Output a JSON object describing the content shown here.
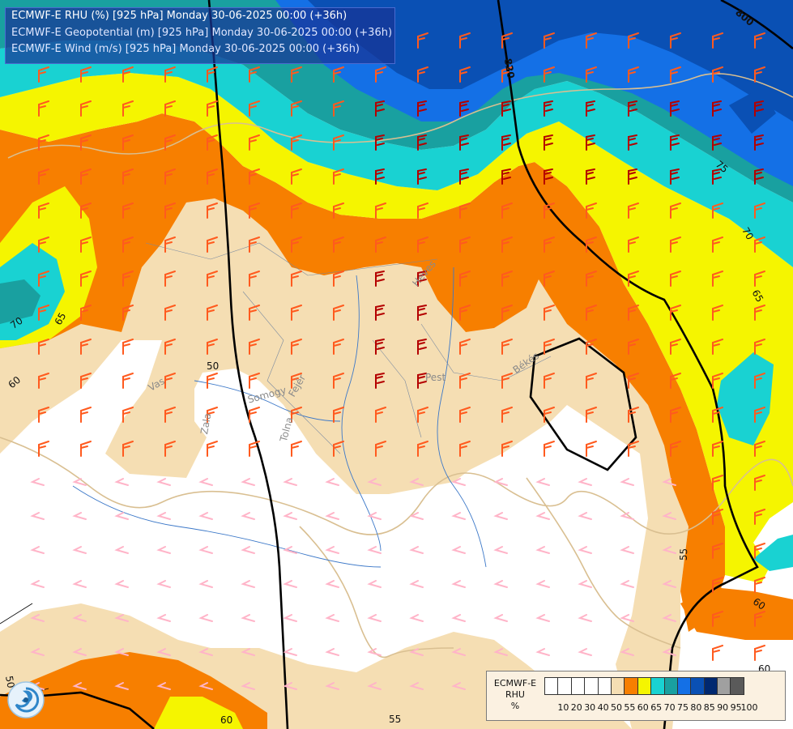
{
  "titles": {
    "rhu": "ECMWF-E RHU (%) [925 hPa] Monday 30-06-2025 00:00 (+36h)",
    "geopotential": "ECMWF-E Geopotential (m) [925 hPa] Monday 30-06-2025 00:00 (+36h)",
    "wind": "ECMWF-E Wind (m/s) [925 hPa] Monday 30-06-2025 00:00 (+36h)"
  },
  "legend": {
    "line1": "ECMWF-E",
    "line2": "RHU",
    "line3": "%",
    "ticks": [
      "10",
      "20",
      "30",
      "40",
      "50",
      "55",
      "60",
      "65",
      "70",
      "75",
      "80",
      "85",
      "90",
      "95",
      "100"
    ],
    "colors": [
      "#ffffff",
      "#ffffff",
      "#ffffff",
      "#ffffff",
      "#ffffff",
      "#f5deb3",
      "#f77f00",
      "#f5f500",
      "#19d2d2",
      "#19a0a0",
      "#1470e6",
      "#0a50b4",
      "#002870",
      "#a0a0a0",
      "#5a5a5a"
    ]
  },
  "rhu_colors": {
    "lt50": "#ffffff",
    "r50_55": "#f5deb3",
    "r55_60": "#f77f00",
    "r60_65": "#f5f500",
    "r65_70": "#19d2d2",
    "r70_75": "#19a0a0",
    "r75_80": "#1470e6",
    "r80_85": "#0a50b4"
  },
  "contour_labels": {
    "rhu": [
      "50",
      "55",
      "55",
      "60",
      "60",
      "60",
      "60",
      "65",
      "65",
      "70",
      "70",
      "75",
      "50"
    ],
    "geopotential": [
      "820",
      "800"
    ]
  },
  "place_labels": [
    "Pest",
    "Békés",
    "Heves",
    "Somogy",
    "Tolna",
    "Fejér",
    "Zala",
    "Vas"
  ],
  "wind_barb_colors": [
    "#ffb4c8",
    "#ff5a1e",
    "#b40000"
  ]
}
